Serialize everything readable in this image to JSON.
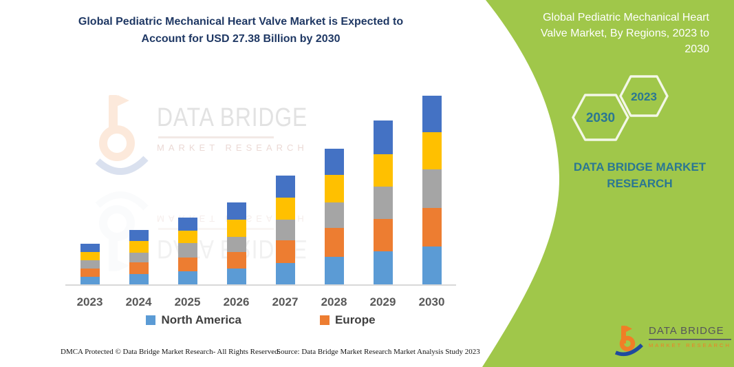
{
  "page": {
    "panel_green": "#A0C74A",
    "accent_teal": "#2B7792",
    "title_navy": "#1F3864",
    "logo_orange": "#F07E26",
    "logo_blue": "#1F4A9E"
  },
  "left": {
    "title_lines": [
      "Global Pediatric Mechanical Heart Valve Market is Expected to",
      "Account for USD 27.38 Billion by 2030"
    ],
    "watermark": {
      "brand": "DATA BRIDGE",
      "sub": "MARKET RESEARCH"
    },
    "footer": {
      "dmca": "DMCA Protected © Data Bridge Market Research-  All Rights Reserved.",
      "source": "Source: Data Bridge Market Research  Market Analysis Study 2023"
    }
  },
  "right": {
    "title_lines": [
      "Global Pediatric Mechanical Heart",
      "Valve Market, By Regions, 2023 to",
      "2030"
    ],
    "hexagons": [
      {
        "year": "2030"
      },
      {
        "year": "2023"
      }
    ],
    "brand_lines": [
      "DATA BRIDGE MARKET",
      "RESEARCH"
    ],
    "logo": {
      "name": "DATA BRIDGE",
      "sub": "MARKET  RESEARCH"
    }
  },
  "chart_data": {
    "type": "bar",
    "stacked": true,
    "title": "Global Pediatric Mechanical Heart Valve Market is Expected to Account for USD 27.38 Billion by 2030",
    "unit": "USD Billion",
    "stated_2030_total": 27.38,
    "categories": [
      "2023",
      "2024",
      "2025",
      "2026",
      "2027",
      "2028",
      "2029",
      "2030"
    ],
    "series": [
      {
        "name": "North America",
        "color": "#5B9BD5",
        "in_legend": true,
        "values": [
          1.1,
          1.5,
          1.9,
          2.3,
          3.1,
          4.0,
          4.8,
          5.5
        ]
      },
      {
        "name": "Europe",
        "color": "#ED7D31",
        "in_legend": true,
        "values": [
          1.2,
          1.7,
          2.0,
          2.4,
          3.3,
          4.2,
          4.7,
          5.6
        ]
      },
      {
        "name": "Unlabeled region (gray)",
        "color": "#A5A5A5",
        "in_legend": false,
        "values": [
          1.2,
          1.4,
          2.1,
          2.2,
          3.0,
          3.7,
          4.7,
          5.6
        ]
      },
      {
        "name": "Unlabeled region (yellow)",
        "color": "#FFC000",
        "in_legend": false,
        "values": [
          1.2,
          1.7,
          1.8,
          2.5,
          3.2,
          4.0,
          4.7,
          5.4
        ]
      },
      {
        "name": "Unlabeled region (dark blue)",
        "color": "#4472C4",
        "in_legend": false,
        "values": [
          1.2,
          1.6,
          1.9,
          2.5,
          3.2,
          3.8,
          4.9,
          5.3
        ]
      }
    ],
    "totals_estimated": [
      5.9,
      7.9,
      9.7,
      11.9,
      15.8,
      19.7,
      23.8,
      27.4
    ],
    "xlabel": "",
    "ylabel": "",
    "y_axis_visible": false,
    "gridlines": false,
    "legend_position": "bottom"
  }
}
